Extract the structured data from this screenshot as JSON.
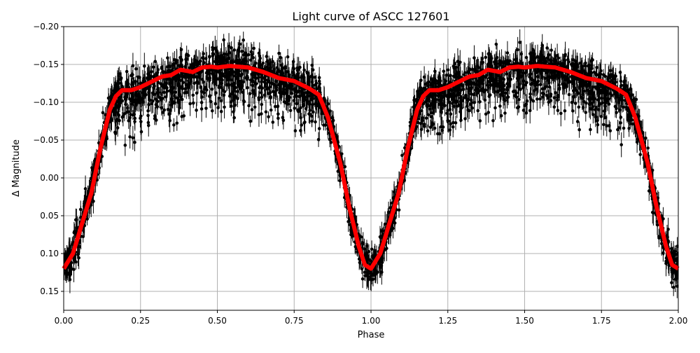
{
  "chart_data": {
    "type": "scatter",
    "title": "Light curve of ASCC 127601",
    "xlabel": "Phase",
    "ylabel": "Δ Magnitude",
    "xlim": [
      0,
      2.0
    ],
    "ylim": [
      0.175,
      -0.2
    ],
    "y_inverted": true,
    "grid": true,
    "xticks": [
      "0.00",
      "0.25",
      "0.50",
      "0.75",
      "1.00",
      "1.25",
      "1.50",
      "1.75",
      "2.00"
    ],
    "xtick_values": [
      0,
      0.25,
      0.5,
      0.75,
      1.0,
      1.25,
      1.5,
      1.75,
      2.0
    ],
    "yticks": [
      "−0.20",
      "−0.15",
      "−0.10",
      "−0.05",
      "0.00",
      "0.05",
      "0.10",
      "0.15"
    ],
    "ytick_values": [
      -0.2,
      -0.15,
      -0.1,
      -0.05,
      0,
      0.05,
      0.1,
      0.15
    ],
    "observations": {
      "color": "#000000",
      "marker": "dot with error bar",
      "scatter_mag": 0.02,
      "errorbar_mag": 0.012,
      "note_phase_folded": "repeats every 1.0 in phase"
    },
    "model_curve": {
      "color": "#ff0000",
      "phase": [
        0,
        0.03,
        0.06,
        0.09,
        0.12,
        0.15,
        0.17,
        0.19,
        0.22,
        0.25,
        0.28,
        0.32,
        0.35,
        0.38,
        0.42,
        0.45,
        0.48,
        0.5,
        0.54,
        0.6,
        0.65,
        0.7,
        0.75,
        0.8,
        0.83,
        0.86,
        0.9,
        0.93,
        0.96,
        0.98,
        1.0
      ],
      "magnitude": [
        0.12,
        0.1,
        0.06,
        0.02,
        -0.04,
        -0.09,
        -0.108,
        -0.116,
        -0.116,
        -0.12,
        -0.126,
        -0.134,
        -0.136,
        -0.143,
        -0.14,
        -0.146,
        -0.147,
        -0.146,
        -0.148,
        -0.146,
        -0.14,
        -0.132,
        -0.128,
        -0.118,
        -0.11,
        -0.08,
        -0.02,
        0.04,
        0.09,
        0.115,
        0.12
      ]
    }
  }
}
